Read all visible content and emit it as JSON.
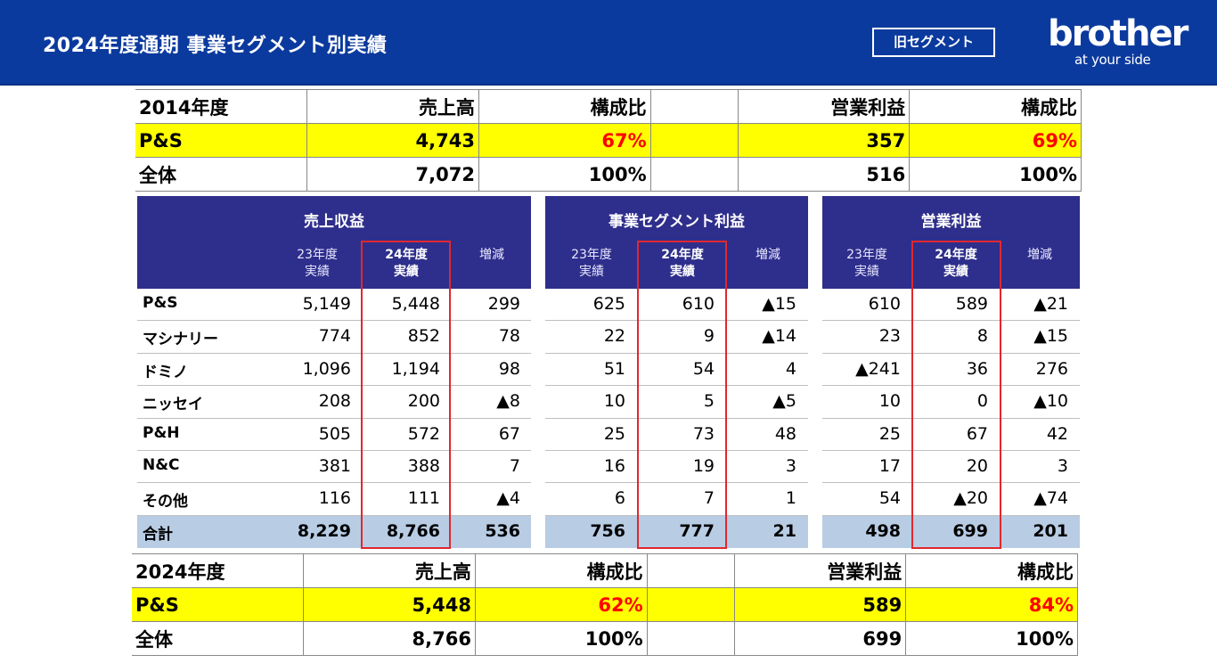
{
  "header": {
    "title": "2024年度通期 事業セグメント別実績",
    "badge": "旧セグメント",
    "logo_word": "brother",
    "logo_tagline": "at your side",
    "background": "#0b3a9e"
  },
  "summary_top": {
    "head": [
      "2014年度",
      "売上高",
      "構成比",
      "",
      "営業利益",
      "構成比"
    ],
    "rows": [
      {
        "label": "P&S",
        "sales": "4,743",
        "sales_ratio": "67%",
        "op": "357",
        "op_ratio": "69%"
      },
      {
        "label": "全体",
        "sales": "7,072",
        "sales_ratio": "100%",
        "op": "516",
        "op_ratio": "100%"
      }
    ]
  },
  "summary_bottom": {
    "head": [
      "2024年度",
      "売上高",
      "構成比",
      "",
      "営業利益",
      "構成比"
    ],
    "rows": [
      {
        "label": "P&S",
        "sales": "5,448",
        "sales_ratio": "62%",
        "op": "589",
        "op_ratio": "84%"
      },
      {
        "label": "全体",
        "sales": "8,766",
        "sales_ratio": "100%",
        "op": "699",
        "op_ratio": "100%"
      }
    ]
  },
  "blocks": [
    {
      "caption": "売上収益",
      "cols": [
        "23年度 実績",
        "24年度 実績",
        "増減"
      ],
      "rows": [
        [
          "5,149",
          "5,448",
          "299"
        ],
        [
          "774",
          "852",
          "78"
        ],
        [
          "1,096",
          "1,194",
          "98"
        ],
        [
          "208",
          "200",
          "▲8"
        ],
        [
          "505",
          "572",
          "67"
        ],
        [
          "381",
          "388",
          "7"
        ],
        [
          "116",
          "111",
          "▲4"
        ]
      ],
      "total": [
        "8,229",
        "8,766",
        "536"
      ]
    },
    {
      "caption": "事業セグメント利益",
      "cols": [
        "23年度 実績",
        "24年度 実績",
        "増減"
      ],
      "rows": [
        [
          "625",
          "610",
          "▲15"
        ],
        [
          "22",
          "9",
          "▲14"
        ],
        [
          "51",
          "54",
          "4"
        ],
        [
          "10",
          "5",
          "▲5"
        ],
        [
          "25",
          "73",
          "48"
        ],
        [
          "16",
          "19",
          "3"
        ],
        [
          "6",
          "7",
          "1"
        ]
      ],
      "total": [
        "756",
        "777",
        "21"
      ]
    },
    {
      "caption": "営業利益",
      "cols": [
        "23年度 実績",
        "24年度 実績",
        "増減"
      ],
      "rows": [
        [
          "610",
          "589",
          "▲21"
        ],
        [
          "23",
          "8",
          "▲15"
        ],
        [
          "▲241",
          "36",
          "276"
        ],
        [
          "10",
          "0",
          "▲10"
        ],
        [
          "25",
          "67",
          "42"
        ],
        [
          "17",
          "20",
          "3"
        ],
        [
          "54",
          "▲20",
          "▲74"
        ]
      ],
      "total": [
        "498",
        "699",
        "201"
      ]
    }
  ],
  "segments": [
    "P&S",
    "マシナリー",
    "ドミノ",
    "ニッセイ",
    "P&H",
    "N&C",
    "その他"
  ],
  "total_label": "合計",
  "colors": {
    "accent": "#0b3a9e",
    "header_band": "#2e2e8c",
    "highlight": "#ffff00",
    "ratio_text": "#ff0000",
    "total_row": "#b8cce4",
    "box": "#e0282e"
  }
}
